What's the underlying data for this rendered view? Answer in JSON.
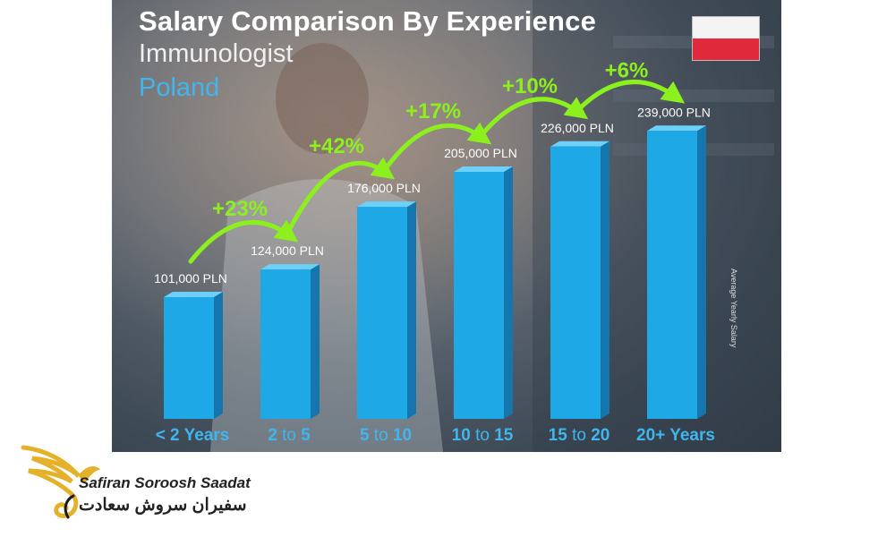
{
  "chart_data": {
    "type": "bar",
    "title": "Salary Comparison By Experience",
    "subtitle": "Immunologist",
    "country": "Poland",
    "ylabel": "Average Yearly Salary",
    "categories": [
      {
        "label": "< 2 Years",
        "a": "< 2",
        "b": " Years",
        "style": "plain"
      },
      {
        "label": "2 to 5",
        "a": "2",
        "b": " to ",
        "c": "5",
        "style": "range"
      },
      {
        "label": "5 to 10",
        "a": "5",
        "b": " to ",
        "c": "10",
        "style": "range"
      },
      {
        "label": "10 to 15",
        "a": "10",
        "b": " to ",
        "c": "15",
        "style": "range"
      },
      {
        "label": "15 to 20",
        "a": "15",
        "b": " to ",
        "c": "20",
        "style": "range"
      },
      {
        "label": "20+ Years",
        "a": "20+",
        "b": " Years",
        "style": "plain"
      }
    ],
    "values": [
      101000,
      124000,
      176000,
      205000,
      226000,
      239000
    ],
    "value_labels": [
      "101,000 PLN",
      "124,000 PLN",
      "176,000 PLN",
      "205,000 PLN",
      "226,000 PLN",
      "239,000 PLN"
    ],
    "increases": [
      "+23%",
      "+42%",
      "+17%",
      "+10%",
      "+6%"
    ],
    "ylim": [
      0,
      260000
    ],
    "colors": {
      "bar": "#1fa8e6",
      "bar_side": "#1476ad",
      "bar_top": "#6cd0f8",
      "increase": "#8cf01e",
      "label": "#ffffff",
      "category": "#3fb6ee"
    }
  },
  "brand": {
    "name_en": "Safiran Soroosh Saadat",
    "name_fa": "سفیران سروش سعادت"
  },
  "flag": {
    "top": "#f4f4f4",
    "bottom": "#e0293b"
  }
}
